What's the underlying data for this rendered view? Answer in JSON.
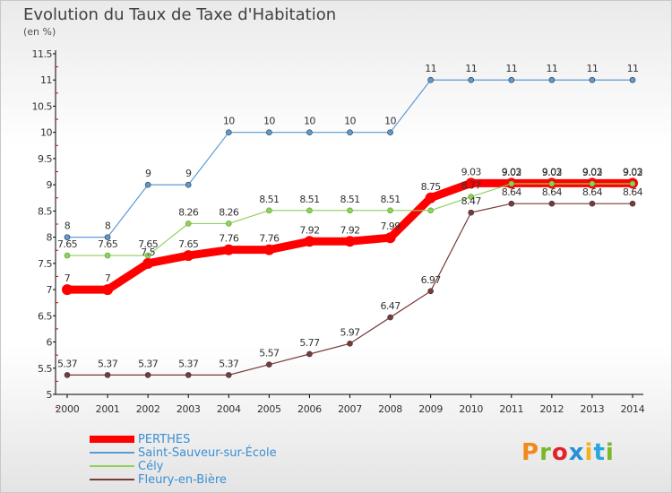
{
  "chart_data": {
    "type": "line",
    "title": "Evolution du Taux de Taxe d'Habitation",
    "subtitle": "(en %)",
    "xlabel": "",
    "ylabel": "",
    "x": [
      "2000",
      "2001",
      "2002",
      "2003",
      "2004",
      "2005",
      "2006",
      "2007",
      "2008",
      "2009",
      "2010",
      "2011",
      "2012",
      "2013",
      "2014"
    ],
    "ylim": [
      5,
      11.5
    ],
    "yticks": [
      "5",
      "5.5",
      "6",
      "6.5",
      "7",
      "7.5",
      "8",
      "8.5",
      "9",
      "9.5",
      "10",
      "10.5",
      "11",
      "11.5"
    ],
    "grid": false,
    "legend_position": "bottom-left",
    "series": [
      {
        "name": "PERTHES",
        "color": "#ff0000",
        "values": [
          7,
          7,
          7.5,
          7.65,
          7.76,
          7.76,
          7.92,
          7.92,
          7.99,
          8.75,
          9.03,
          9.03,
          9.03,
          9.03,
          9.03
        ],
        "labels": [
          "7",
          "7",
          "7.5",
          "7.65",
          "7.76",
          "7.76",
          "7.92",
          "7.92",
          "7.99",
          "8.75",
          "9.03",
          "9.03",
          "9.03",
          "9.03",
          "9.03"
        ]
      },
      {
        "name": "Saint-Sauveur-sur-École",
        "color": "#5b9bd5",
        "values": [
          8,
          8,
          9,
          9,
          10,
          10,
          10,
          10,
          10,
          11,
          11,
          11,
          11,
          11,
          11
        ],
        "labels": [
          "8",
          "8",
          "9",
          "9",
          "10",
          "10",
          "10",
          "10",
          "10",
          "11",
          "11",
          "11",
          "11",
          "11",
          "11"
        ]
      },
      {
        "name": "Cély",
        "color": "#8fd15c",
        "values": [
          7.65,
          7.65,
          7.65,
          8.26,
          8.26,
          8.51,
          8.51,
          8.51,
          8.51,
          8.51,
          8.77,
          9.02,
          9.02,
          9.02,
          9.02
        ],
        "labels": [
          "7.65",
          "7.65",
          "7.65",
          "8.26",
          "8.26",
          "8.51",
          "8.51",
          "8.51",
          "8.51",
          "",
          "8.77",
          "9.02",
          "9.02",
          "9.02",
          "9.02"
        ]
      },
      {
        "name": "Fleury-en-Bière",
        "color": "#7b3a3a",
        "values": [
          5.37,
          5.37,
          5.37,
          5.37,
          5.37,
          5.57,
          5.77,
          5.97,
          6.47,
          6.97,
          8.47,
          8.64,
          8.64,
          8.64,
          8.64
        ],
        "labels": [
          "5.37",
          "5.37",
          "5.37",
          "5.37",
          "5.37",
          "5.57",
          "5.77",
          "5.97",
          "6.47",
          "6.97",
          "8.47",
          "8.64",
          "8.64",
          "8.64",
          "8.64"
        ]
      }
    ]
  },
  "logo": {
    "letters": [
      "P",
      "r",
      "o",
      "x",
      "i",
      "t",
      "i"
    ]
  }
}
